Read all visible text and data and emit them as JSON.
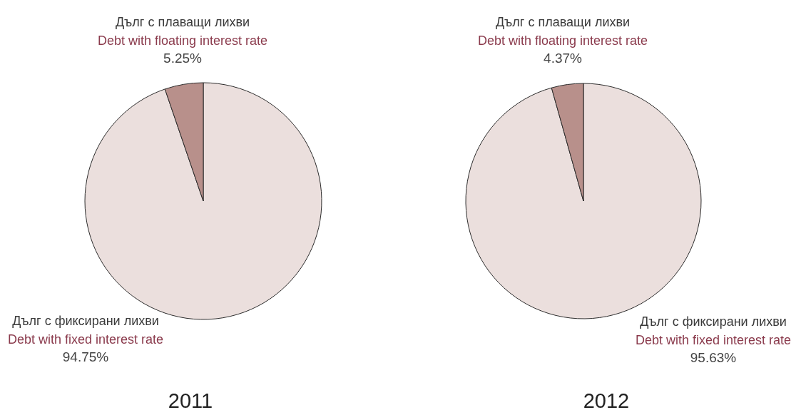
{
  "chart_data": [
    {
      "type": "pie",
      "title": "2011",
      "categories": [
        "Дълг с фиксирани лихви\nDebt with fixed interest rate",
        "Дълг с плаващи лихви\nDebt with floating interest rate"
      ],
      "values": [
        94.75,
        5.25
      ],
      "value_labels": [
        "94.75%",
        "5.25%"
      ],
      "colors": [
        "#ebdfdd",
        "#b8908b"
      ]
    },
    {
      "type": "pie",
      "title": "2012",
      "categories": [
        "Дълг с фиксирани лихви\nDebt with fixed interest rate",
        "Дълг с плаващи лихви\nDebt with floating interest rate"
      ],
      "values": [
        95.63,
        4.37
      ],
      "value_labels": [
        "95.63%",
        "4.37%"
      ],
      "colors": [
        "#ebdfdd",
        "#b8908b"
      ]
    }
  ]
}
